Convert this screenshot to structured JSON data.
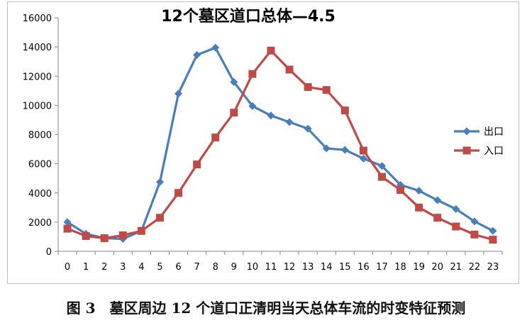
{
  "caption": "图 3　墓区周边 12 个道口正清明当天总体车流的时变特征预测",
  "chart_data": {
    "type": "line",
    "title": "12个墓区道口总体—4.5",
    "xlabel": "",
    "ylabel": "",
    "categories": [
      "0",
      "1",
      "2",
      "3",
      "4",
      "5",
      "6",
      "7",
      "8",
      "9",
      "10",
      "11",
      "12",
      "13",
      "14",
      "15",
      "16",
      "17",
      "18",
      "19",
      "20",
      "21",
      "22",
      "23"
    ],
    "ylim": [
      0,
      16000
    ],
    "yticks": [
      "0",
      "2000",
      "4000",
      "6000",
      "8000",
      "10000",
      "12000",
      "14000",
      "16000"
    ],
    "grid": false,
    "legend_position": "right",
    "series": [
      {
        "name": "出口",
        "color": "#4a7ebb",
        "marker": "diamond",
        "values": [
          2000,
          1200,
          900,
          850,
          1400,
          4750,
          10800,
          13450,
          13950,
          11600,
          9950,
          9300,
          8850,
          8400,
          7050,
          6950,
          6350,
          5850,
          4550,
          4150,
          3500,
          2900,
          2050,
          1400
        ]
      },
      {
        "name": "入口",
        "color": "#be4b48",
        "marker": "square",
        "values": [
          1550,
          1050,
          900,
          1100,
          1400,
          2300,
          4000,
          5950,
          7800,
          9500,
          12150,
          13750,
          12450,
          11250,
          11050,
          9650,
          6900,
          5100,
          4200,
          3000,
          2300,
          1700,
          1150,
          800
        ]
      }
    ]
  }
}
